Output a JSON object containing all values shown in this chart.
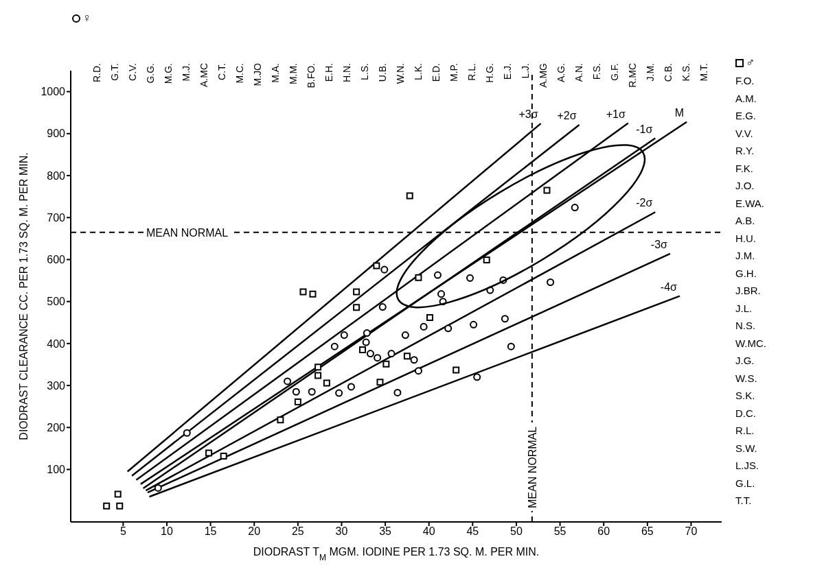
{
  "chart_data": {
    "type": "scatter",
    "xlabel": "DIODRAST T$_{M}$ MGM. IODINE PER 1.73 SQ. M. PER MIN.",
    "ylabel": "DIODRAST CLEARANCE CC. PER 1.73 SQ. M. PER MIN.",
    "xlim": [
      -1,
      73.5
    ],
    "ylim": [
      -25,
      1050
    ],
    "xticks": [
      5,
      10,
      15,
      20,
      25,
      30,
      35,
      40,
      45,
      50,
      55,
      60,
      65,
      70
    ],
    "yticks": [
      100,
      200,
      300,
      400,
      500,
      600,
      700,
      800,
      900,
      1000
    ],
    "legend": "top right",
    "series": [
      {
        "name": "♀",
        "marker": "circle",
        "color": "#000000",
        "x": [
          9.0,
          12.3,
          23.8,
          24.8,
          26.6,
          34.9,
          34.7,
          41.0,
          44.7,
          48.5,
          47.0,
          41.4,
          41.6,
          39.4,
          42.2,
          45.1,
          48.7,
          49.4,
          37.3,
          30.3,
          29.2,
          32.9,
          32.8,
          33.3,
          34.1,
          35.7,
          38.3,
          38.8,
          45.5,
          31.1,
          29.7,
          36.4,
          56.7,
          53.9
        ],
        "values": [
          56,
          187,
          310,
          285,
          285,
          576,
          487,
          563,
          556,
          551,
          527,
          518,
          500,
          440,
          436,
          445,
          459,
          393,
          420,
          420,
          393,
          425,
          403,
          376,
          366,
          376,
          361,
          335,
          320,
          297,
          282,
          283,
          724,
          546
        ]
      },
      {
        "name": "♂",
        "marker": "square",
        "color": "#000000",
        "x": [
          3.1,
          4.6,
          4.4,
          14.8,
          16.5,
          23.0,
          25.0,
          27.3,
          27.3,
          28.3,
          34.0,
          25.6,
          26.7,
          31.7,
          31.7,
          38.8,
          46.6,
          40.1,
          32.4,
          37.5,
          35.1,
          43.1,
          34.4,
          37.8,
          53.5
        ],
        "values": [
          13,
          13,
          41,
          139,
          132,
          218,
          261,
          344,
          324,
          306,
          585,
          523,
          518,
          523,
          486,
          557,
          599,
          462,
          385,
          370,
          351,
          337,
          308,
          752,
          765
        ]
      },
      {
        "name": "+3σ",
        "type": "line",
        "color": "#000000",
        "x": [
          5.5,
          52.8
        ],
        "values": [
          95,
          924
        ]
      },
      {
        "name": "+2σ",
        "type": "line",
        "color": "#000000",
        "x": [
          6,
          57.2
        ],
        "values": [
          85,
          921
        ]
      },
      {
        "name": "+1σ",
        "type": "line",
        "color": "#000000",
        "x": [
          6.5,
          62.8
        ],
        "values": [
          75,
          925
        ]
      },
      {
        "name": "M",
        "type": "line",
        "color": "#000000",
        "x": [
          7,
          69.5
        ],
        "values": [
          65,
          928
        ]
      },
      {
        "name": "-1σ",
        "type": "line",
        "color": "#000000",
        "x": [
          7.3,
          65.9
        ],
        "values": [
          55,
          889
        ]
      },
      {
        "name": "-2σ",
        "type": "line",
        "color": "#000000",
        "x": [
          7.6,
          65.9
        ],
        "values": [
          50,
          713
        ]
      },
      {
        "name": "-3σ",
        "type": "line",
        "color": "#000000",
        "x": [
          7.8,
          67.6
        ],
        "values": [
          45,
          614
        ]
      },
      {
        "name": "-4σ",
        "type": "line",
        "color": "#000000",
        "x": [
          8,
          68.7
        ],
        "values": [
          35,
          513
        ]
      }
    ],
    "ref_lines": [
      {
        "axis": "y",
        "value": 665,
        "label": "MEAN NORMAL",
        "line_style": "dashed",
        "color": "#000000"
      },
      {
        "axis": "x",
        "value": 51.8,
        "label": "MEAN NORMAL",
        "line_style": "dashed",
        "color": "#000000"
      }
    ],
    "annotations": [
      "R.D.",
      "G.T.",
      "C.V.",
      "G.G.",
      "M.G.",
      "M.J.",
      "A.MC",
      "C.T.",
      "M.C.",
      "M.JO",
      "M.A.",
      "M.M.",
      "B.FO.",
      "E.H.",
      "H.N.",
      "L.S.",
      "U.B.",
      "W.N.",
      "L.K.",
      "E.D.",
      "M.P.",
      "R.L.",
      "H.G.",
      "E.J.",
      "L.J.",
      "A.MG",
      "A.G.",
      "A.N.",
      "F.S.",
      "G.F.",
      "R.MC",
      "J.M.",
      "C.B.",
      "K.S.",
      "M.T.",
      "F.O.",
      "A.M.",
      "E.G.",
      "V.V.",
      "R.Y.",
      "F.K.",
      "J.O.",
      "E.WA.",
      "A.B.",
      "H.U.",
      "J.M.",
      "G.H.",
      "J.BR.",
      "J.L.",
      "N.S.",
      "W.MC.",
      "J.G.",
      "W.S.",
      "S.K.",
      "D.C.",
      "R.L.",
      "S.W.",
      "L.JS.",
      "G.L.",
      "T.T."
    ]
  }
}
